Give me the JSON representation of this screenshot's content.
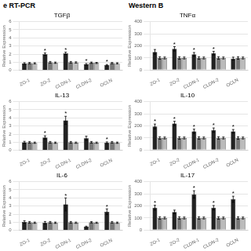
{
  "chart_data": [
    {
      "type": "bar",
      "title": "TGFβ",
      "annotations": [
        "e RT-PCR"
      ],
      "categories": [
        "ZO-1",
        "ZO-2",
        "CLDN-1",
        "CLDN-2",
        "OCLN"
      ],
      "ylabel": "Relative Expression",
      "ylim": [
        0,
        6
      ],
      "yticks": [
        0,
        1,
        2,
        3,
        4,
        5,
        6
      ],
      "grid": true,
      "series": [
        {
          "color": "#222222",
          "values": [
            0.85,
            2.0,
            2.1,
            0.75,
            0.65
          ],
          "errors": [
            0.1,
            0.15,
            0.15,
            0.1,
            0.08
          ],
          "annotations": [
            null,
            "*",
            "*",
            "*",
            "*"
          ]
        },
        {
          "color": "#777777",
          "values": [
            0.9,
            1.0,
            1.0,
            0.95,
            0.9
          ],
          "errors": [
            0.08,
            0.1,
            0.1,
            0.08,
            0.08
          ]
        },
        {
          "color": "#bbbbbb",
          "values": [
            0.88,
            0.95,
            0.98,
            0.92,
            0.88
          ],
          "errors": [
            0.07,
            0.08,
            0.08,
            0.07,
            0.07
          ]
        }
      ]
    },
    {
      "type": "bar",
      "title": "TNFα",
      "annotations": [
        "Western B"
      ],
      "categories": [
        "ZO-1",
        "ZO-2",
        "CLDN-1",
        "CLDN-2",
        "OCLN"
      ],
      "ylabel": "Relative Expression",
      "ylim": [
        0,
        400
      ],
      "yticks": [
        0,
        100,
        200,
        300,
        400
      ],
      "grid": true,
      "series": [
        {
          "color": "#222222",
          "values": [
            150,
            175,
            130,
            140,
            95
          ],
          "errors": [
            20,
            18,
            15,
            15,
            12
          ],
          "annotations": [
            null,
            "*",
            "*",
            "*",
            null
          ]
        },
        {
          "color": "#777777",
          "values": [
            100,
            100,
            100,
            100,
            100
          ],
          "errors": [
            10,
            10,
            10,
            10,
            10
          ]
        },
        {
          "color": "#bbbbbb",
          "values": [
            100,
            100,
            100,
            100,
            100
          ],
          "errors": [
            8,
            8,
            8,
            8,
            8
          ]
        }
      ]
    },
    {
      "type": "bar",
      "title": "IL-13",
      "categories": [
        "ZO-1",
        "ZO-2",
        "CLDN-1",
        "CLDN-2",
        "OCLN"
      ],
      "ylabel": "Relative Expression",
      "ylim": [
        0,
        6
      ],
      "yticks": [
        0,
        1,
        2,
        3,
        4,
        5,
        6
      ],
      "grid": true,
      "series": [
        {
          "color": "#222222",
          "values": [
            1.0,
            1.6,
            3.7,
            1.5,
            0.95
          ],
          "errors": [
            0.12,
            0.2,
            0.5,
            0.25,
            0.1
          ],
          "annotations": [
            null,
            "*",
            "*",
            null,
            "*"
          ]
        },
        {
          "color": "#777777",
          "values": [
            1.0,
            1.0,
            1.0,
            1.0,
            1.0
          ],
          "errors": [
            0.1,
            0.1,
            0.1,
            0.1,
            0.1
          ]
        },
        {
          "color": "#bbbbbb",
          "values": [
            0.95,
            0.95,
            0.95,
            0.95,
            0.95
          ],
          "errors": [
            0.08,
            0.08,
            0.08,
            0.08,
            0.08
          ]
        }
      ]
    },
    {
      "type": "bar",
      "title": "IL-10",
      "categories": [
        "ZO-1",
        "ZO-2",
        "CLDN-1",
        "CLDN-2",
        "OCLN"
      ],
      "ylabel": "Relative Expression",
      "ylim": [
        0,
        400
      ],
      "yticks": [
        0,
        100,
        200,
        300,
        400
      ],
      "grid": true,
      "series": [
        {
          "color": "#222222",
          "values": [
            195,
            220,
            155,
            165,
            155
          ],
          "errors": [
            20,
            18,
            18,
            18,
            15
          ],
          "annotations": [
            "*",
            "*",
            "*",
            "*",
            "*"
          ]
        },
        {
          "color": "#777777",
          "values": [
            100,
            100,
            100,
            100,
            100
          ],
          "errors": [
            10,
            10,
            10,
            10,
            10
          ]
        },
        {
          "color": "#bbbbbb",
          "values": [
            100,
            100,
            100,
            100,
            100
          ],
          "errors": [
            8,
            8,
            8,
            8,
            8
          ]
        }
      ]
    },
    {
      "type": "bar",
      "title": "IL-6",
      "categories": [
        "ZO-1",
        "ZO-2",
        "CLDN-1",
        "CLDN-2",
        "OCLN"
      ],
      "ylabel": "Relative Expression",
      "ylim": [
        0,
        6
      ],
      "yticks": [
        0,
        1,
        2,
        3,
        4,
        5,
        6
      ],
      "grid": true,
      "series": [
        {
          "color": "#222222",
          "values": [
            1.05,
            0.95,
            3.2,
            0.45,
            2.3
          ],
          "errors": [
            0.15,
            0.15,
            0.8,
            0.08,
            0.35
          ],
          "annotations": [
            null,
            null,
            "*",
            null,
            "*"
          ]
        },
        {
          "color": "#777777",
          "values": [
            1.0,
            1.0,
            1.0,
            1.0,
            1.0
          ],
          "errors": [
            0.1,
            0.1,
            0.1,
            0.08,
            0.1
          ]
        },
        {
          "color": "#bbbbbb",
          "values": [
            0.95,
            0.95,
            0.95,
            0.95,
            0.95
          ],
          "errors": [
            0.08,
            0.08,
            0.08,
            0.07,
            0.08
          ]
        }
      ]
    },
    {
      "type": "bar",
      "title": "IL-17",
      "categories": [
        "ZO-1",
        "ZO-2",
        "CLDN-1",
        "CLDN-2",
        "OCLN"
      ],
      "ylabel": "Relative Expression",
      "ylim": [
        0,
        400
      ],
      "yticks": [
        0,
        100,
        200,
        300,
        400
      ],
      "grid": true,
      "series": [
        {
          "color": "#222222",
          "values": [
            185,
            150,
            295,
            185,
            255
          ],
          "errors": [
            20,
            15,
            30,
            18,
            25
          ],
          "annotations": [
            "*",
            null,
            "*",
            "*",
            "*"
          ]
        },
        {
          "color": "#777777",
          "values": [
            100,
            100,
            100,
            100,
            100
          ],
          "errors": [
            10,
            10,
            10,
            10,
            10
          ]
        },
        {
          "color": "#bbbbbb",
          "values": [
            100,
            100,
            100,
            100,
            100
          ],
          "errors": [
            8,
            8,
            8,
            8,
            8
          ]
        }
      ]
    }
  ]
}
